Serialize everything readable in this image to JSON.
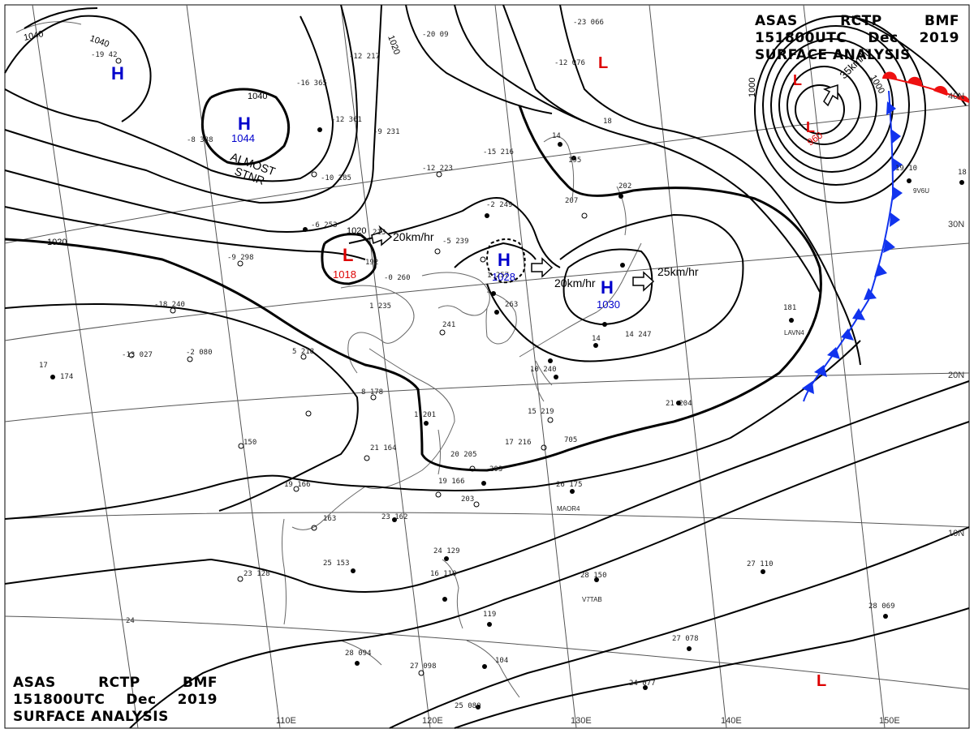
{
  "header_top": {
    "line1": [
      "ASAS",
      "RCTP",
      "BMF"
    ],
    "line2": [
      "151800UTC",
      "Dec",
      "2019"
    ],
    "line3": "SURFACE ANALYSIS"
  },
  "header_bottom": {
    "line1": [
      "ASAS",
      "RCTP",
      "BMF"
    ],
    "line2": [
      "151800UTC",
      "Dec",
      "2019"
    ],
    "line3": "SURFACE ANALYSIS"
  },
  "longitude_labels": [
    "110E",
    "120E",
    "130E",
    "140E",
    "150E"
  ],
  "latitude_labels": [
    "40N",
    "30N",
    "20N",
    "10N"
  ],
  "isobar_labels": [
    "1040",
    "1040",
    "1040",
    "1020",
    "1020",
    "1020",
    "1000",
    "1000"
  ],
  "pressure_centers": [
    {
      "symbol": "H",
      "value": "",
      "color": "#0000cc"
    },
    {
      "symbol": "H",
      "value": "1044",
      "color": "#0000cc"
    },
    {
      "symbol": "L",
      "value": "1018",
      "color": "#dd0000"
    },
    {
      "symbol": "H",
      "value": "1028",
      "color": "#0000cc"
    },
    {
      "symbol": "H",
      "value": "1030",
      "color": "#0000cc"
    },
    {
      "symbol": "L",
      "value": "",
      "color": "#dd0000"
    },
    {
      "symbol": "L",
      "value": "",
      "color": "#dd0000"
    },
    {
      "symbol": "L",
      "value": "960",
      "color": "#dd0000"
    },
    {
      "symbol": "L",
      "value": "",
      "color": "#dd0000"
    }
  ],
  "motion_labels": [
    "20km/hr",
    "20km/hr",
    "25km/hr",
    "35km/hr"
  ],
  "annotation": [
    "ALMOST",
    "STNR"
  ],
  "ship_ids": [
    "LAVN4",
    "MAOR4",
    "V7TAB",
    "9V6U"
  ],
  "colors": {
    "high": "#0000cc",
    "low": "#dd0000",
    "cold_front": "#1133ee",
    "warm_front": "#ee1111",
    "isobar": "#000000",
    "coast": "#666666"
  }
}
